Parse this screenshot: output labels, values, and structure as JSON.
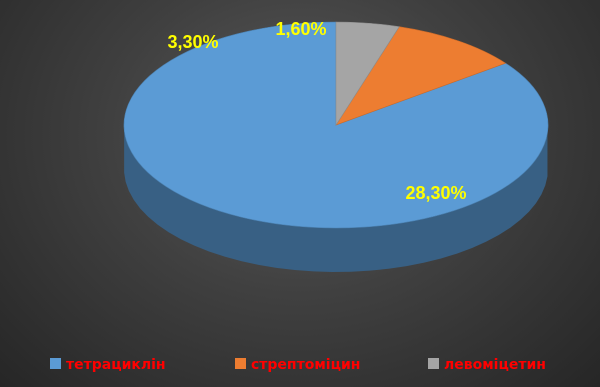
{
  "chart_data": {
    "type": "pie",
    "style": "3d",
    "labels": [
      "тетрациклін",
      "стрептоміцин",
      "левоміцетин"
    ],
    "data_labels": [
      "28,30%",
      "3,30%",
      "1,60%"
    ],
    "values": [
      28.3,
      3.3,
      1.6
    ],
    "colors": [
      "#5b9bd5",
      "#ed7d31",
      "#a5a5a5"
    ],
    "data_label_color": "#ffff00",
    "legend_position": "bottom",
    "legend_text_color": "#ff0000"
  }
}
